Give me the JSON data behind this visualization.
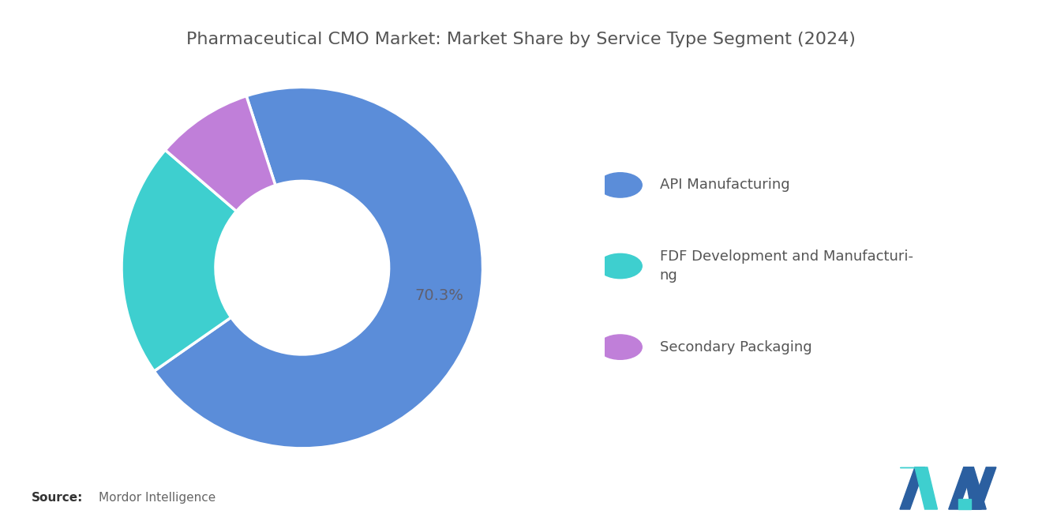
{
  "title": "Pharmaceutical CMO Market: Market Share by Service Type Segment (2024)",
  "segments": [
    {
      "label": "API Manufacturing",
      "value": 70.3,
      "color": "#5B8DD9"
    },
    {
      "label": "FDF Development and Manufacturing",
      "value": 21.0,
      "color": "#3ECFCF"
    },
    {
      "label": "Secondary Packaging",
      "value": 8.7,
      "color": "#C07FD9"
    }
  ],
  "label_only_first": "70.3%",
  "background_color": "#ffffff",
  "title_color": "#555555",
  "title_fontsize": 16,
  "legend_fontsize": 13,
  "label_fontsize": 14,
  "label_color": "#606070",
  "donut_width": 0.52,
  "startangle": 108,
  "legend_items": [
    {
      "label": "API Manufacturing",
      "color": "#5B8DD9"
    },
    {
      "label": "FDF Development and Manufacturi-\nng",
      "color": "#3ECFCF"
    },
    {
      "label": "Secondary Packaging",
      "color": "#C07FD9"
    }
  ]
}
